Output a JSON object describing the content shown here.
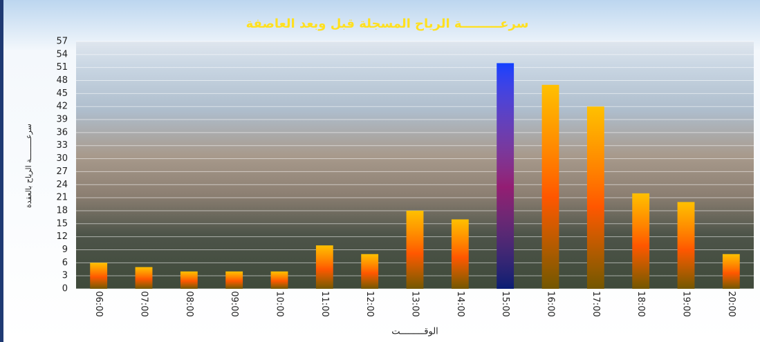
{
  "chart_data": {
    "type": "bar",
    "title": "سرعـــــــــة الرياح المسجلة قبل وبعد العاصفة",
    "y_label": "سرعـــــــــة الرياح بالعقدة",
    "x_label": "الوقـــــــــت",
    "categories": [
      "06:00",
      "07:00",
      "08:00",
      "09:00",
      "10:00",
      "11:00",
      "12:00",
      "13:00",
      "14:00",
      "15:00",
      "16:00",
      "17:00",
      "18:00",
      "19:00",
      "20:00"
    ],
    "values": [
      6,
      5,
      4,
      4,
      4,
      10,
      8,
      18,
      16,
      52,
      47,
      42,
      22,
      20,
      8
    ],
    "colors": [
      "#ffc000",
      "#ffc000",
      "#ffc000",
      "#ffc000",
      "#ffc000",
      "#ffc000",
      "#ffc000",
      "#ffc000",
      "#ffc000",
      "#1040ff",
      "#ffc000",
      "#ffc000",
      "#ffc000",
      "#ffc000",
      "#ffc000"
    ],
    "ylim": [
      0,
      57
    ],
    "yticks": [
      0,
      3,
      6,
      9,
      12,
      15,
      18,
      21,
      24,
      27,
      30,
      33,
      36,
      39,
      42,
      45,
      48,
      51,
      54,
      57
    ],
    "grid": true
  }
}
